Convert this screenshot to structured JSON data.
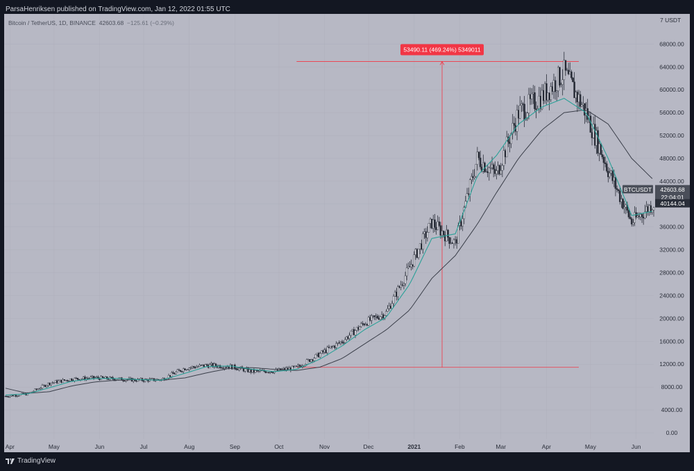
{
  "header": {
    "published": "ParsaHenriksen published on TradingView.com, Jan 12, 2022 01:55 UTC"
  },
  "symbol_bar": {
    "name": "Bitcoin / TetherUS, 1D, BINANCE",
    "value": "42603.68",
    "change": "−125.61 (−0.29%)"
  },
  "price_axis": {
    "unit_label": "7 USDT",
    "ticks": [
      "68000.00",
      "64000.00",
      "60000.00",
      "56000.00",
      "52000.00",
      "48000.00",
      "44000.00",
      "40000.00",
      "36000.00",
      "32000.00",
      "28000.00",
      "24000.00",
      "20000.00",
      "16000.00",
      "12000.00",
      "8000.00",
      "4000.00",
      "0.00"
    ]
  },
  "time_axis": {
    "ticks": [
      "Apr",
      "May",
      "Jun",
      "Jul",
      "Aug",
      "Sep",
      "Oct",
      "Nov",
      "Dec",
      "2021",
      "Feb",
      "Mar",
      "Apr",
      "May",
      "Jun"
    ]
  },
  "labels": {
    "ticker": "BTCUSDT",
    "last_price": "42603.68",
    "countdown": "22:04:01",
    "ma_value": "40144.04",
    "measure": "53490.11 (469.24%) 5349011"
  },
  "footer": {
    "brand": "TradingView"
  },
  "colors": {
    "background": "#b7b8c4",
    "candles": "#2a2e39",
    "ma_fast": "#2aa198",
    "ma_slow": "#3b3f4a",
    "measure": "#f23645",
    "label_dark": "#4a4e59"
  },
  "chart_data": {
    "type": "candlestick",
    "title": "Bitcoin / TetherUS, 1D, BINANCE",
    "ylim": [
      0,
      68000
    ],
    "x": [
      "2020-03-31",
      "2020-04-15",
      "2020-04-30",
      "2020-05-15",
      "2020-05-31",
      "2020-06-15",
      "2020-06-30",
      "2020-07-15",
      "2020-07-31",
      "2020-08-15",
      "2020-08-31",
      "2020-09-15",
      "2020-09-30",
      "2020-10-15",
      "2020-10-31",
      "2020-11-15",
      "2020-11-30",
      "2020-12-15",
      "2020-12-31",
      "2021-01-15",
      "2021-01-31",
      "2021-02-15",
      "2021-02-28",
      "2021-03-15",
      "2021-03-31",
      "2021-04-15",
      "2021-04-30",
      "2021-05-15",
      "2021-05-31",
      "2021-06-15"
    ],
    "series": [
      {
        "name": "BTCUSDT",
        "values": [
          6400,
          6800,
          8700,
          9400,
          9600,
          9400,
          9200,
          9300,
          11300,
          11800,
          11600,
          10700,
          10800,
          11400,
          13800,
          16000,
          19200,
          21000,
          29000,
          36800,
          33100,
          48000,
          45200,
          56000,
          58800,
          63000,
          56000,
          46000,
          36800,
          40144
        ]
      },
      {
        "values": [
          6600,
          6800,
          7900,
          9000,
          9500,
          9500,
          9300,
          9200,
          10400,
          11600,
          11700,
          11100,
          10700,
          11100,
          12900,
          15200,
          18000,
          20200,
          26000,
          34000,
          34800,
          45000,
          48500,
          54000,
          57000,
          58500,
          56000,
          48000,
          38000,
          38800
        ]
      },
      {
        "values": [
          7800,
          6900,
          7200,
          8200,
          8900,
          9200,
          9300,
          9200,
          9600,
          10500,
          11300,
          11400,
          11100,
          10900,
          11500,
          13000,
          15500,
          18000,
          21500,
          27000,
          31000,
          36500,
          42000,
          48000,
          53000,
          56000,
          56500,
          54000,
          48000,
          44200
        ]
      }
    ],
    "annotations": [
      "53490.11 (469.24%) 5349011"
    ]
  }
}
